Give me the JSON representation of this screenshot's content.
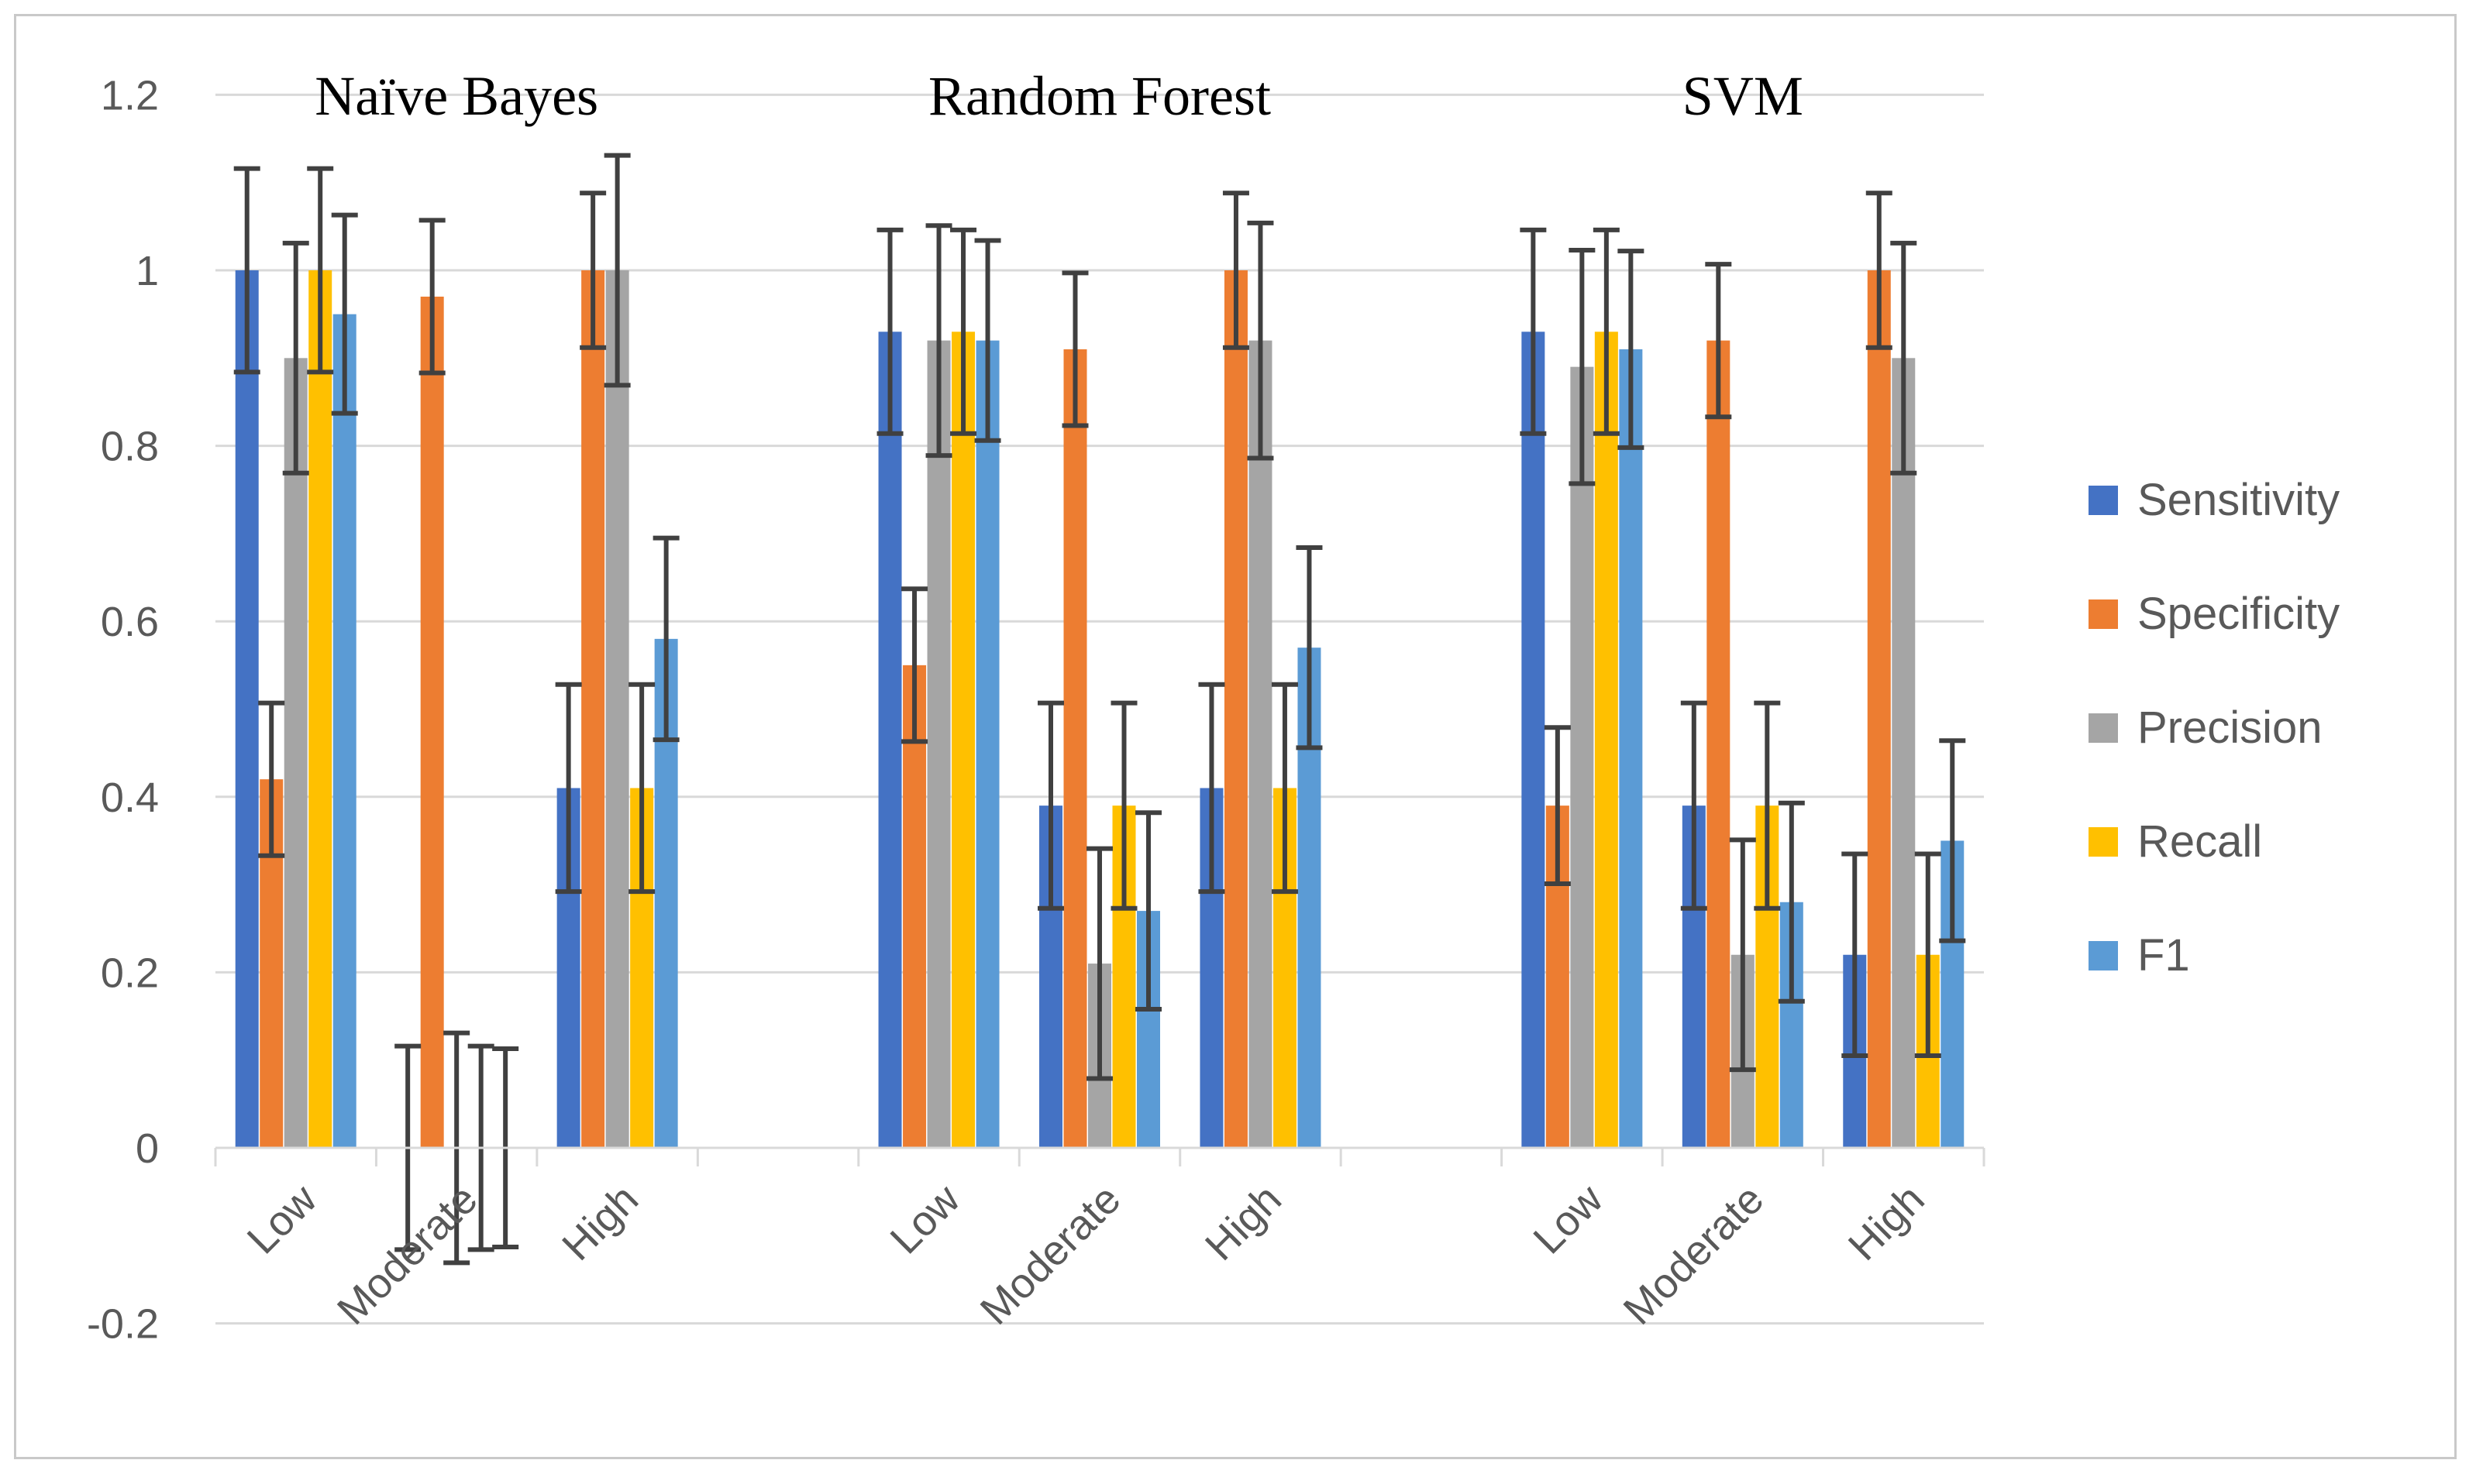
{
  "chart_data": {
    "type": "bar",
    "title": "",
    "xlabel": "",
    "ylabel": "",
    "ylim": [
      -0.2,
      1.2
    ],
    "y_ticks": [
      "-0.2",
      "0",
      "0.2",
      "0.4",
      "0.6",
      "0.8",
      "1",
      "1.2"
    ],
    "y_tick_values": [
      -0.2,
      0,
      0.2,
      0.4,
      0.6,
      0.8,
      1.0,
      1.2
    ],
    "grid": true,
    "legend_position": "right",
    "groups": [
      {
        "title": "Naïve Bayes",
        "categories": [
          "Low",
          "Moderate",
          "High"
        ]
      },
      {
        "title": "Random Forest",
        "categories": [
          "Low",
          "Moderate",
          "High"
        ]
      },
      {
        "title": "SVM",
        "categories": [
          "Low",
          "Moderate",
          "High"
        ]
      }
    ],
    "series": [
      {
        "name": "Sensitivity",
        "color": "#4472c4",
        "values": [
          [
            1.0,
            0.0,
            0.41
          ],
          [
            0.93,
            0.39,
            0.41
          ],
          [
            0.93,
            0.39,
            0.22
          ]
        ],
        "errors": [
          [
            0.116,
            0.116,
            0.118
          ],
          [
            0.116,
            0.117,
            0.118
          ],
          [
            0.116,
            0.117,
            0.115
          ]
        ]
      },
      {
        "name": "Specificity",
        "color": "#ed7d31",
        "values": [
          [
            0.42,
            0.97,
            1.0
          ],
          [
            0.55,
            0.91,
            1.0
          ],
          [
            0.39,
            0.92,
            1.0
          ]
        ],
        "errors": [
          [
            0.087,
            0.087,
            0.088
          ],
          [
            0.087,
            0.087,
            0.088
          ],
          [
            0.089,
            0.087,
            0.088
          ]
        ]
      },
      {
        "name": "Precision",
        "color": "#a5a5a5",
        "values": [
          [
            0.9,
            0.0,
            1.0
          ],
          [
            0.92,
            0.21,
            0.92
          ],
          [
            0.89,
            0.22,
            0.9
          ]
        ],
        "errors": [
          [
            0.131,
            0.131,
            0.131
          ],
          [
            0.131,
            0.131,
            0.134
          ],
          [
            0.133,
            0.131,
            0.131
          ]
        ]
      },
      {
        "name": "Recall",
        "color": "#ffc000",
        "values": [
          [
            1.0,
            0.0,
            0.41
          ],
          [
            0.93,
            0.39,
            0.41
          ],
          [
            0.93,
            0.39,
            0.22
          ]
        ],
        "errors": [
          [
            0.116,
            0.116,
            0.118
          ],
          [
            0.116,
            0.117,
            0.118
          ],
          [
            0.116,
            0.117,
            0.115
          ]
        ]
      },
      {
        "name": "F1",
        "color": "#5b9bd5",
        "values": [
          [
            0.95,
            0.0,
            0.58
          ],
          [
            0.92,
            0.27,
            0.57
          ],
          [
            0.91,
            0.28,
            0.35
          ]
        ],
        "errors": [
          [
            0.113,
            0.113,
            0.115
          ],
          [
            0.114,
            0.112,
            0.114
          ],
          [
            0.112,
            0.113,
            0.114
          ]
        ]
      }
    ]
  }
}
